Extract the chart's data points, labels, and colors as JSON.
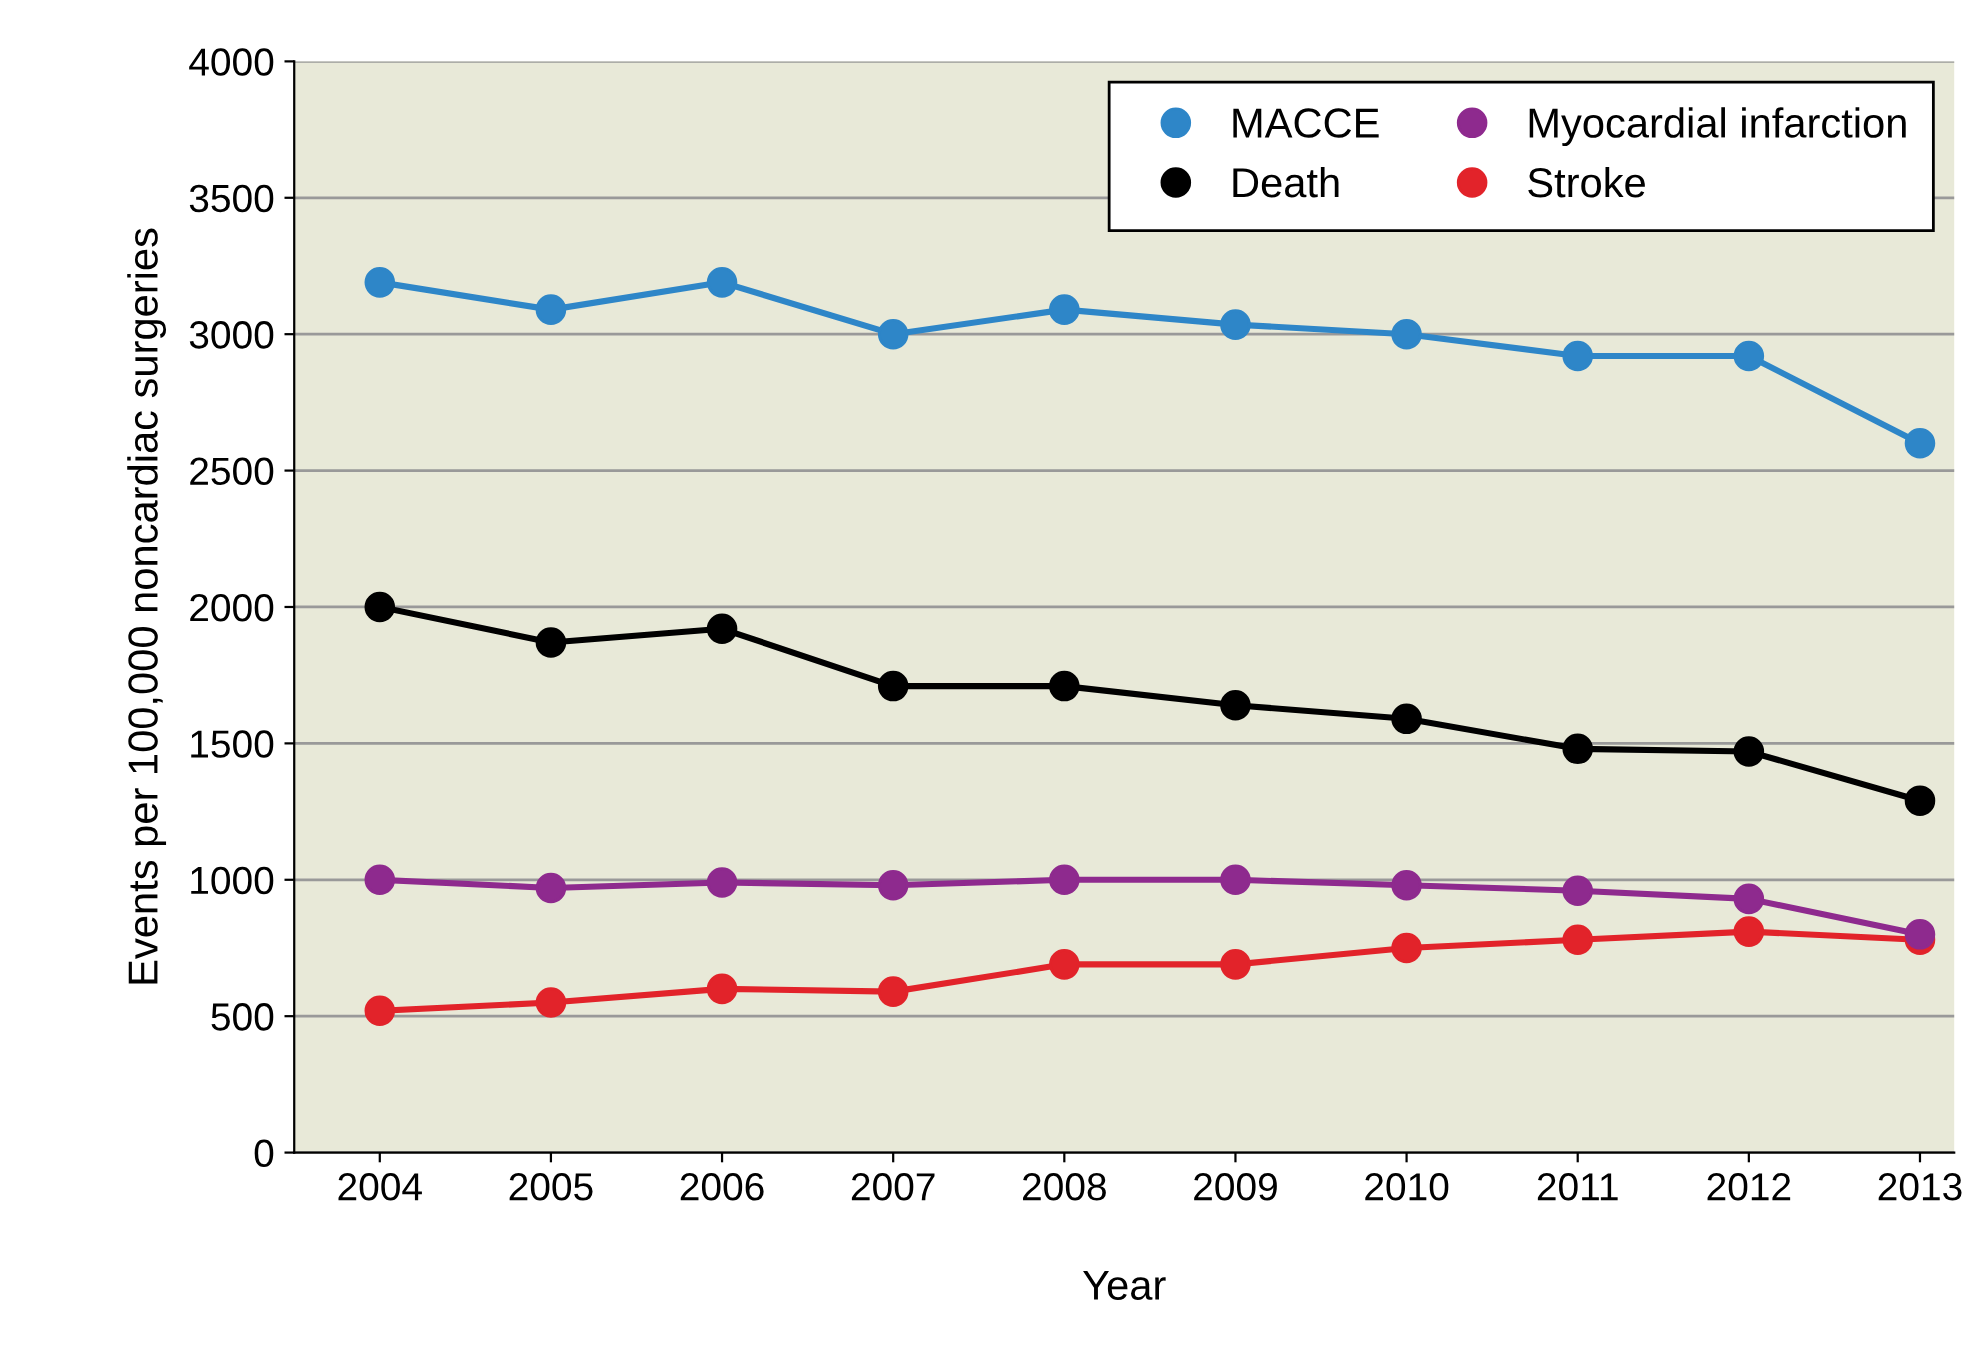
{
  "chart_data": {
    "type": "line",
    "xlabel": "Year",
    "ylabel": "Events per 100,000 noncardiac surgeries",
    "x": [
      2004,
      2005,
      2006,
      2007,
      2008,
      2009,
      2010,
      2011,
      2012,
      2013
    ],
    "xlim": [
      2003.5,
      2013.2
    ],
    "xticks": [
      2004,
      2005,
      2006,
      2007,
      2008,
      2009,
      2010,
      2011,
      2012,
      2013
    ],
    "ylim": [
      0,
      4000
    ],
    "yticks": [
      0,
      500,
      1000,
      1500,
      2000,
      2500,
      3000,
      3500,
      4000
    ],
    "grid": "y",
    "legend": "top right",
    "marker": "circle",
    "line_style": "solid",
    "series": [
      {
        "name": "MACCE",
        "color": "#2e86c8",
        "values": [
          3190,
          3090,
          3190,
          3000,
          3090,
          3035,
          3000,
          2920,
          2920,
          2600
        ]
      },
      {
        "name": "Death",
        "color": "#000000",
        "values": [
          2000,
          1870,
          1920,
          1710,
          1710,
          1640,
          1590,
          1480,
          1470,
          1290
        ]
      },
      {
        "name": "Myocardial infarction",
        "color": "#8e2a8e",
        "values": [
          1000,
          970,
          990,
          980,
          1000,
          1000,
          980,
          960,
          930,
          800
        ]
      },
      {
        "name": "Stroke",
        "color": "#e2232a",
        "values": [
          520,
          550,
          600,
          590,
          690,
          690,
          750,
          780,
          810,
          780
        ]
      }
    ]
  }
}
